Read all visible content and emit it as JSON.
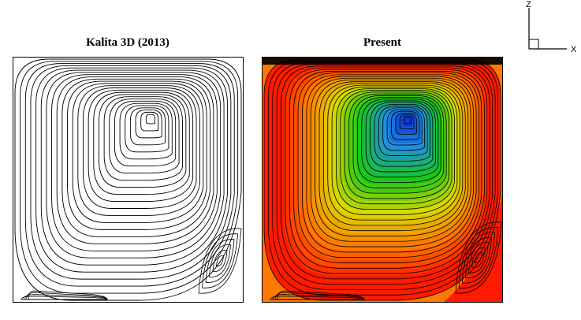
{
  "panels": {
    "left": {
      "title": "Kalita 3D (2013)"
    },
    "right": {
      "title": "Present"
    }
  },
  "axes": {
    "vertical": "Z",
    "horizontal": "X"
  },
  "colors": {
    "frame": "#000000",
    "streamline": "#000000",
    "contour_scale": [
      "#0a18c8",
      "#1e8ee0",
      "#18c818",
      "#d8d800",
      "#ff7a00",
      "#ff1a00"
    ]
  }
}
